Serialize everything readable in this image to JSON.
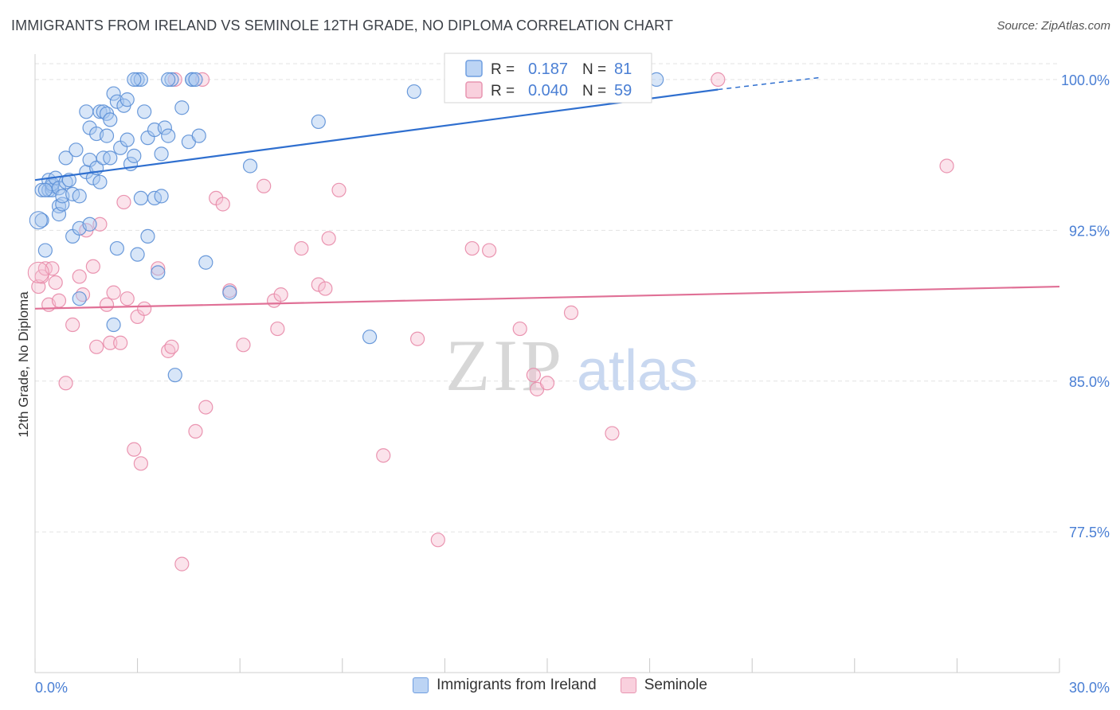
{
  "title": "IMMIGRANTS FROM IRELAND VS SEMINOLE 12TH GRADE, NO DIPLOMA CORRELATION CHART",
  "source": "Source: ZipAtlas.com",
  "watermark": {
    "zip": "ZIP",
    "atlas": "atlas"
  },
  "colors": {
    "blue": "#5b8fd6",
    "blue_fill": "#a9c7ef",
    "blue_line": "#2f6fcf",
    "pink": "#e88aa8",
    "pink_fill": "#f6c0d2",
    "pink_line": "#e07096",
    "axis_label": "#4a7fd4",
    "grid": "#e3e3e3"
  },
  "chart_data": {
    "type": "scatter",
    "title": "IMMIGRANTS FROM IRELAND VS SEMINOLE 12TH GRADE, NO DIPLOMA CORRELATION CHART",
    "xlabel": "",
    "ylabel": "12th Grade, No Diploma",
    "xlim": [
      0,
      30
    ],
    "ylim": [
      70.5,
      101.5
    ],
    "x_ticks": [
      {
        "value": 0,
        "label": "0.0%"
      },
      {
        "value": 30,
        "label": "30.0%"
      }
    ],
    "y_ticks": [
      {
        "value": 100,
        "label": "100.0%"
      },
      {
        "value": 92.5,
        "label": "92.5%"
      },
      {
        "value": 85,
        "label": "85.0%"
      },
      {
        "value": 77.5,
        "label": "77.5%"
      }
    ],
    "stats": [
      {
        "r_label": "R =",
        "r_value": "0.187",
        "n_label": "N =",
        "n_value": "81"
      },
      {
        "r_label": "R =",
        "r_value": "0.040",
        "n_label": "N =",
        "n_value": "59"
      }
    ],
    "series": [
      {
        "name": "Immigrants from Ireland",
        "trend": {
          "x0": 0,
          "y0": 95.0,
          "x1": 20,
          "y1": 99.5,
          "dash_x1": 23,
          "dash_y1": 100.1
        },
        "points": [
          [
            0.2,
            93.0
          ],
          [
            0.3,
            91.5
          ],
          [
            0.2,
            94.5
          ],
          [
            0.4,
            94.5
          ],
          [
            0.4,
            95.0
          ],
          [
            0.5,
            94.7
          ],
          [
            0.5,
            94.5
          ],
          [
            0.5,
            94.8
          ],
          [
            0.6,
            95.1
          ],
          [
            0.7,
            94.6
          ],
          [
            0.7,
            93.7
          ],
          [
            0.7,
            93.3
          ],
          [
            0.8,
            93.8
          ],
          [
            0.8,
            94.2
          ],
          [
            0.9,
            94.9
          ],
          [
            0.9,
            96.1
          ],
          [
            1.1,
            92.2
          ],
          [
            1.1,
            94.3
          ],
          [
            1.2,
            96.5
          ],
          [
            1.3,
            94.2
          ],
          [
            1.3,
            89.1
          ],
          [
            1.3,
            92.6
          ],
          [
            1.5,
            95.4
          ],
          [
            1.5,
            98.4
          ],
          [
            1.6,
            96.0
          ],
          [
            1.6,
            92.8
          ],
          [
            1.6,
            97.6
          ],
          [
            1.7,
            95.1
          ],
          [
            1.8,
            97.3
          ],
          [
            1.8,
            95.6
          ],
          [
            1.9,
            94.9
          ],
          [
            1.9,
            98.4
          ],
          [
            2.0,
            96.1
          ],
          [
            2.0,
            98.4
          ],
          [
            2.1,
            98.3
          ],
          [
            2.1,
            97.2
          ],
          [
            2.2,
            98.0
          ],
          [
            2.2,
            96.1
          ],
          [
            2.3,
            99.3
          ],
          [
            2.3,
            87.8
          ],
          [
            2.4,
            98.9
          ],
          [
            2.4,
            91.6
          ],
          [
            2.5,
            96.6
          ],
          [
            2.6,
            98.7
          ],
          [
            2.7,
            99.0
          ],
          [
            2.7,
            97.0
          ],
          [
            2.8,
            95.8
          ],
          [
            2.9,
            96.2
          ],
          [
            3.0,
            100.0
          ],
          [
            3.0,
            91.3
          ],
          [
            3.1,
            94.1
          ],
          [
            3.1,
            100.0
          ],
          [
            3.2,
            98.4
          ],
          [
            3.3,
            97.1
          ],
          [
            3.3,
            92.2
          ],
          [
            3.5,
            97.5
          ],
          [
            3.5,
            94.1
          ],
          [
            3.6,
            90.4
          ],
          [
            3.7,
            96.3
          ],
          [
            3.7,
            94.2
          ],
          [
            3.8,
            97.6
          ],
          [
            3.9,
            97.2
          ],
          [
            4.1,
            85.3
          ],
          [
            4.3,
            98.6
          ],
          [
            4.5,
            96.9
          ],
          [
            4.6,
            100.0
          ],
          [
            4.6,
            100.0
          ],
          [
            4.7,
            100.0
          ],
          [
            4.8,
            97.2
          ],
          [
            5.0,
            90.9
          ],
          [
            5.7,
            89.4
          ],
          [
            6.3,
            95.7
          ],
          [
            8.3,
            97.9
          ],
          [
            9.8,
            87.2
          ],
          [
            11.1,
            99.4
          ],
          [
            18.2,
            100.0
          ],
          [
            4.0,
            100.0
          ],
          [
            3.9,
            100.0
          ],
          [
            2.9,
            100.0
          ],
          [
            0.3,
            94.5
          ],
          [
            1.0,
            95.0
          ]
        ]
      },
      {
        "name": "Seminole",
        "trend": {
          "x0": 0,
          "y0": 88.6,
          "x1": 30,
          "y1": 89.7
        },
        "points": [
          [
            0.1,
            89.7
          ],
          [
            0.2,
            90.2
          ],
          [
            0.3,
            90.6
          ],
          [
            0.4,
            88.8
          ],
          [
            0.5,
            90.6
          ],
          [
            0.6,
            89.9
          ],
          [
            0.7,
            89.0
          ],
          [
            0.9,
            84.9
          ],
          [
            1.1,
            87.8
          ],
          [
            1.3,
            90.2
          ],
          [
            1.4,
            89.3
          ],
          [
            1.5,
            92.5
          ],
          [
            1.7,
            90.7
          ],
          [
            1.8,
            86.7
          ],
          [
            1.9,
            92.8
          ],
          [
            2.1,
            88.8
          ],
          [
            2.2,
            86.9
          ],
          [
            2.3,
            89.4
          ],
          [
            2.5,
            86.9
          ],
          [
            2.6,
            93.9
          ],
          [
            2.7,
            89.1
          ],
          [
            2.9,
            81.6
          ],
          [
            3.0,
            88.2
          ],
          [
            3.1,
            80.9
          ],
          [
            3.2,
            88.6
          ],
          [
            3.6,
            90.6
          ],
          [
            3.9,
            86.5
          ],
          [
            4.0,
            86.7
          ],
          [
            4.1,
            100.0
          ],
          [
            4.3,
            75.9
          ],
          [
            4.7,
            82.5
          ],
          [
            4.9,
            100.0
          ],
          [
            5.0,
            83.7
          ],
          [
            5.3,
            94.1
          ],
          [
            5.5,
            93.8
          ],
          [
            5.7,
            89.5
          ],
          [
            6.1,
            86.8
          ],
          [
            6.7,
            94.7
          ],
          [
            7.0,
            89.0
          ],
          [
            7.1,
            87.6
          ],
          [
            7.2,
            89.3
          ],
          [
            7.8,
            91.6
          ],
          [
            8.3,
            89.8
          ],
          [
            8.5,
            89.6
          ],
          [
            8.6,
            92.1
          ],
          [
            8.9,
            94.5
          ],
          [
            10.2,
            81.3
          ],
          [
            11.2,
            87.1
          ],
          [
            11.8,
            77.1
          ],
          [
            12.8,
            91.6
          ],
          [
            13.3,
            91.5
          ],
          [
            14.2,
            87.6
          ],
          [
            14.6,
            85.3
          ],
          [
            14.7,
            84.6
          ],
          [
            15.0,
            84.9
          ],
          [
            15.7,
            88.4
          ],
          [
            16.9,
            82.4
          ],
          [
            20.0,
            100.0
          ],
          [
            26.7,
            95.7
          ]
        ]
      }
    ]
  }
}
